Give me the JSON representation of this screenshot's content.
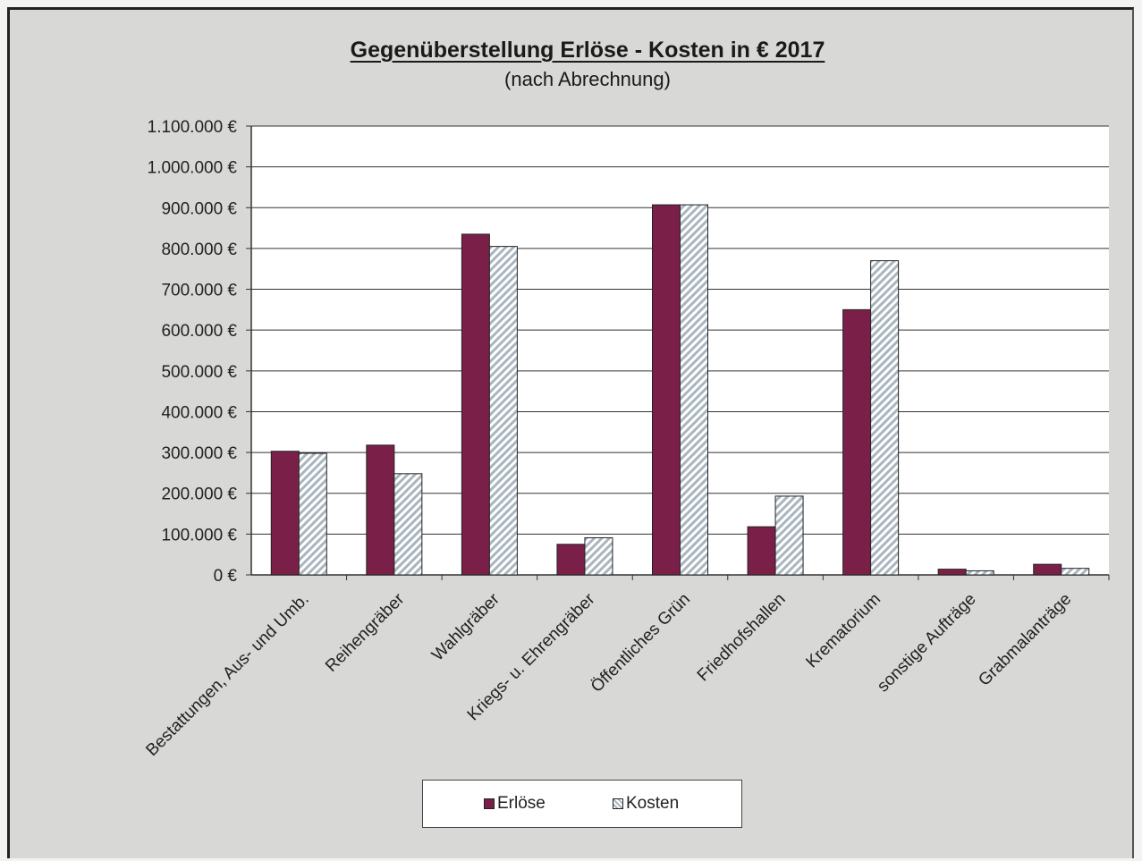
{
  "chart_data": {
    "type": "bar",
    "title": "Gegenüberstellung Erlöse - Kosten in € 2017",
    "subtitle": "(nach Abrechnung)",
    "categories": [
      "Bestattungen, Aus- und Umb.",
      "Reihengräber",
      "Wahlgräber",
      "Kriegs- u. Ehrengräber",
      "Öffentliches Grün",
      "Friedhofshallen",
      "Krematorium",
      "sonstige Aufträge",
      "Grabmalanträge"
    ],
    "series": [
      {
        "name": "Erlöse",
        "values": [
          303000,
          318000,
          835000,
          75000,
          907000,
          118000,
          650000,
          14000,
          26000
        ]
      },
      {
        "name": "Kosten",
        "values": [
          298000,
          248000,
          805000,
          91000,
          907000,
          193000,
          770000,
          10000,
          16000
        ]
      }
    ],
    "y_ticks": [
      "0 €",
      "100.000 €",
      "200.000 €",
      "300.000 €",
      "400.000 €",
      "500.000 €",
      "600.000 €",
      "700.000 €",
      "800.000 €",
      "900.000 €",
      "1.000.000 €",
      "1.100.000 €"
    ],
    "ylim": [
      0,
      1100000
    ],
    "xlabel": "",
    "ylabel": "",
    "grid": true,
    "legend_position": "bottom",
    "colors": {
      "Erlöse": "#7a2048",
      "Kosten": "#c4ccd4"
    }
  }
}
